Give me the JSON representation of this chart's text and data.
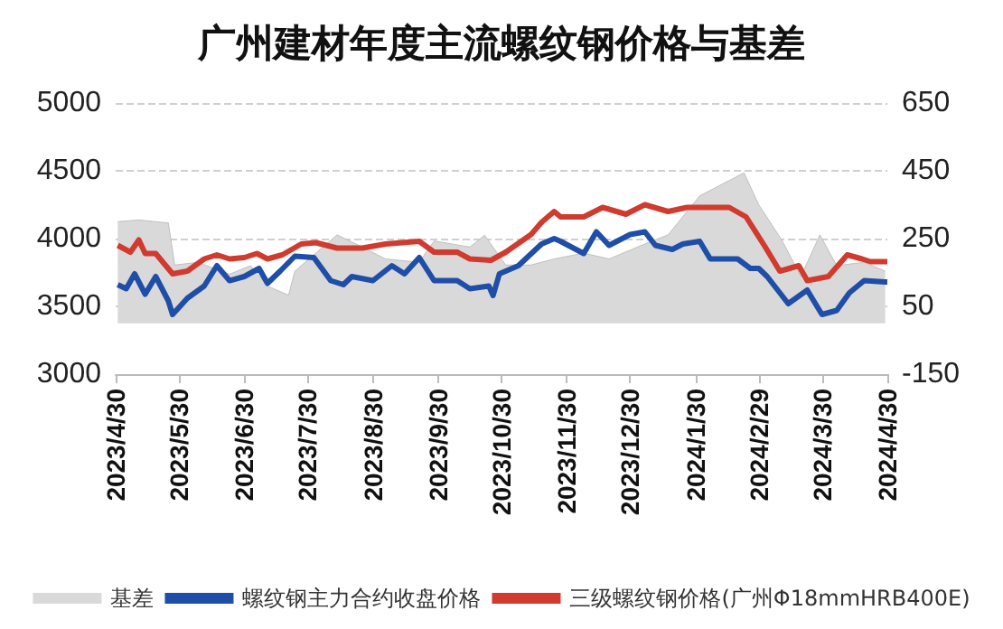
{
  "chart_data": {
    "type": "line",
    "title": "广州建材年度主流螺纹钢价格与基差",
    "legend": "bottom",
    "grid": "y",
    "marker": "none",
    "xlim": [
      "2023-04-30",
      "2024-04-30"
    ],
    "xticks": [
      {
        "value": "2023-04-30",
        "label": "2023/4/30"
      },
      {
        "value": "2023-05-30",
        "label": "2023/5/30"
      },
      {
        "value": "2023-06-30",
        "label": "2023/6/30"
      },
      {
        "value": "2023-07-30",
        "label": "2023/7/30"
      },
      {
        "value": "2023-08-30",
        "label": "2023/8/30"
      },
      {
        "value": "2023-09-30",
        "label": "2023/9/30"
      },
      {
        "value": "2023-10-30",
        "label": "2023/10/30"
      },
      {
        "value": "2023-11-30",
        "label": "2023/11/30"
      },
      {
        "value": "2023-12-30",
        "label": "2023/12/30"
      },
      {
        "value": "2024-01-30",
        "label": "2024/1/30"
      },
      {
        "value": "2024-02-29",
        "label": "2024/2/29"
      },
      {
        "value": "2024-03-30",
        "label": "2024/3/30"
      },
      {
        "value": "2024-04-30",
        "label": "2024/4/30"
      }
    ],
    "ylim": [
      3000,
      5000
    ],
    "yticks": [
      3000,
      3500,
      4000,
      4500,
      5000
    ],
    "y2lim": [
      -150,
      650
    ],
    "y2ticks": [
      -150,
      50,
      250,
      450,
      650
    ],
    "series": [
      {
        "name": "基差",
        "type": "area",
        "axis": "y2",
        "color": "#d9d9d9",
        "x": [
          "2023-05-01",
          "2023-05-11",
          "2023-05-25",
          "2023-05-28",
          "2023-06-08",
          "2023-06-23",
          "2023-07-03",
          "2023-07-11",
          "2023-07-21",
          "2023-07-24",
          "2023-08-13",
          "2023-08-25",
          "2023-09-05",
          "2023-09-21",
          "2023-09-28",
          "2023-10-15",
          "2023-10-22",
          "2023-11-01",
          "2023-11-13",
          "2023-11-24",
          "2023-12-08",
          "2023-12-20",
          "2024-01-06",
          "2024-01-17",
          "2024-02-01",
          "2024-02-22",
          "2024-02-29",
          "2024-03-11",
          "2024-03-20",
          "2024-03-29",
          "2024-04-06",
          "2024-04-19",
          "2024-04-29"
        ],
        "values": [
          300,
          305,
          296,
          172,
          180,
          145,
          170,
          110,
          83,
          154,
          261,
          225,
          190,
          180,
          243,
          225,
          260,
          172,
          172,
          190,
          207,
          190,
          234,
          261,
          376,
          444,
          350,
          245,
          138,
          261,
          170,
          180,
          154
        ]
      },
      {
        "name": "螺纹钢主力合约收盘价格",
        "color": "#1f4ea8",
        "x": [
          "2023-05-01",
          "2023-05-05",
          "2023-05-09",
          "2023-05-14",
          "2023-05-19",
          "2023-05-25",
          "2023-05-27",
          "2023-06-03",
          "2023-06-11",
          "2023-06-17",
          "2023-06-23",
          "2023-06-30",
          "2023-07-07",
          "2023-07-11",
          "2023-07-17",
          "2023-07-24",
          "2023-08-02",
          "2023-08-10",
          "2023-08-16",
          "2023-08-20",
          "2023-08-30",
          "2023-09-08",
          "2023-09-14",
          "2023-09-21",
          "2023-09-28",
          "2023-10-09",
          "2023-10-15",
          "2023-10-24",
          "2023-10-26",
          "2023-10-29",
          "2023-11-07",
          "2023-11-18",
          "2023-11-24",
          "2023-11-27",
          "2023-12-08",
          "2023-12-14",
          "2023-12-20",
          "2023-12-30",
          "2024-01-06",
          "2024-01-11",
          "2024-01-19",
          "2024-01-24",
          "2024-02-01",
          "2024-02-06",
          "2024-02-19",
          "2024-02-25",
          "2024-02-29",
          "2024-03-04",
          "2024-03-14",
          "2024-03-23",
          "2024-03-30",
          "2024-04-06",
          "2024-04-12",
          "2024-04-19",
          "2024-04-29",
          "2024-04-30"
        ],
        "values": [
          3660,
          3630,
          3740,
          3590,
          3720,
          3540,
          3440,
          3560,
          3650,
          3800,
          3690,
          3720,
          3780,
          3670,
          3760,
          3870,
          3860,
          3690,
          3660,
          3720,
          3690,
          3800,
          3740,
          3860,
          3690,
          3690,
          3630,
          3650,
          3580,
          3740,
          3800,
          3960,
          4000,
          3980,
          3890,
          4050,
          3950,
          4030,
          4050,
          3950,
          3920,
          3960,
          3980,
          3850,
          3850,
          3780,
          3780,
          3720,
          3520,
          3620,
          3440,
          3470,
          3600,
          3690,
          3680,
          3680
        ]
      },
      {
        "name": "三级螺纹钢价格(广州Φ18mmHRB400E)",
        "color": "#d03a2f",
        "x": [
          "2023-05-01",
          "2023-05-07",
          "2023-05-11",
          "2023-05-14",
          "2023-05-19",
          "2023-05-27",
          "2023-06-03",
          "2023-06-11",
          "2023-06-17",
          "2023-06-23",
          "2023-06-30",
          "2023-07-06",
          "2023-07-11",
          "2023-07-18",
          "2023-07-27",
          "2023-08-03",
          "2023-08-13",
          "2023-08-25",
          "2023-09-05",
          "2023-09-21",
          "2023-09-28",
          "2023-10-09",
          "2023-10-15",
          "2023-10-25",
          "2023-11-01",
          "2023-11-13",
          "2023-11-18",
          "2023-11-24",
          "2023-11-27",
          "2023-12-08",
          "2023-12-17",
          "2023-12-28",
          "2024-01-06",
          "2024-01-17",
          "2024-01-26",
          "2024-02-15",
          "2024-02-23",
          "2024-03-03",
          "2024-03-10",
          "2024-03-19",
          "2024-03-23",
          "2024-04-02",
          "2024-04-11",
          "2024-04-18",
          "2024-04-22",
          "2024-04-30"
        ],
        "values": [
          3950,
          3900,
          3990,
          3890,
          3890,
          3740,
          3760,
          3850,
          3880,
          3850,
          3860,
          3890,
          3850,
          3880,
          3960,
          3970,
          3930,
          3930,
          3960,
          3980,
          3900,
          3900,
          3850,
          3840,
          3900,
          4030,
          4120,
          4200,
          4160,
          4160,
          4230,
          4180,
          4250,
          4200,
          4230,
          4230,
          4160,
          3940,
          3760,
          3800,
          3690,
          3720,
          3880,
          3850,
          3830,
          3830
        ]
      }
    ]
  }
}
